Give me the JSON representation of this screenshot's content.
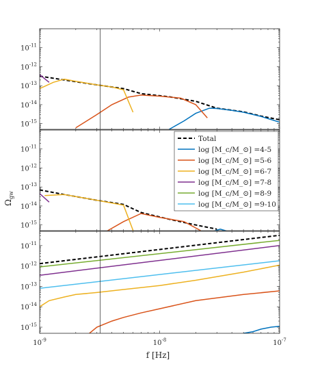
{
  "figure": {
    "ylabel": "Ω",
    "ylabel_sub": "gw",
    "xlabel": "f [Hz]",
    "x_ticks": [
      {
        "value": 1e-09,
        "base": "10",
        "exp": "-9"
      },
      {
        "value": 1e-08,
        "base": "10",
        "exp": "-8"
      },
      {
        "value": 1e-07,
        "base": "10",
        "exp": "-7"
      }
    ],
    "marker_line_f": 3.2e-09,
    "colors": {
      "4-5": "#0072BD",
      "5-6": "#D95319",
      "6-7": "#EDB120",
      "7-8": "#7E2F8E",
      "8-9": "#77AC30",
      "9-10": "#4DBEEE",
      "total": "#000000"
    }
  },
  "legend": {
    "placement": "top-right of middle panel",
    "entries": [
      {
        "key": "total",
        "label": "Total",
        "style": "dashed"
      },
      {
        "key": "4-5",
        "label": "log [M_c/M_⊙] =4-5"
      },
      {
        "key": "5-6",
        "label": "log [M_c/M_⊙] =5-6"
      },
      {
        "key": "6-7",
        "label": "log [M_c/M_⊙] =6-7"
      },
      {
        "key": "7-8",
        "label": "log [M_c/M_⊙] =7-8"
      },
      {
        "key": "8-9",
        "label": "log [M_c/M_⊙] =8-9"
      },
      {
        "key": "9-10",
        "label": "log [M_c/M_⊙] =9-10"
      }
    ]
  },
  "chart_data": [
    {
      "type": "line",
      "xscale": "log",
      "yscale": "log",
      "xlim": [
        1e-09,
        1e-07
      ],
      "ylim": [
        5e-16,
        1e-10
      ],
      "y_ticks": [
        {
          "value": 1e-15,
          "exp": "-15"
        },
        {
          "value": 1e-14,
          "exp": "-14"
        },
        {
          "value": 1e-13,
          "exp": "-13"
        },
        {
          "value": 1e-12,
          "exp": "-12"
        },
        {
          "value": 1e-11,
          "exp": "-11"
        }
      ],
      "series": [
        {
          "key": "total",
          "dashed": true,
          "x": [
            1e-09,
            1.6e-09,
            3e-09,
            5e-09,
            7e-09,
            1.2e-08,
            2e-08,
            3e-08,
            5e-08,
            7e-08,
            1e-07
          ],
          "y": [
            3.2e-13,
            2e-13,
            1.1e-13,
            7e-14,
            3.8e-14,
            2.6e-14,
            1.5e-14,
            6.5e-15,
            4.2e-15,
            2.5e-15,
            1.6e-15
          ]
        },
        {
          "key": "4-5",
          "x": [
            1.2e-08,
            1.6e-08,
            2e-08,
            2.6e-08,
            3e-08,
            4e-08,
            5e-08,
            7e-08,
            1e-07
          ],
          "y": [
            5e-16,
            1.4e-15,
            3.5e-15,
            6.5e-15,
            6.3e-15,
            5e-15,
            4e-15,
            2.4e-15,
            1.2e-15
          ]
        },
        {
          "key": "5-6",
          "x": [
            2e-09,
            3e-09,
            4e-09,
            5.5e-09,
            7e-09,
            1e-08,
            1.5e-08,
            2e-08,
            2.5e-08
          ],
          "y": [
            6e-16,
            3e-15,
            1e-14,
            2.5e-14,
            3.2e-14,
            2.8e-14,
            2.2e-14,
            1e-14,
            2e-15
          ]
        },
        {
          "key": "6-7",
          "x": [
            1e-09,
            1.3e-09,
            1.6e-09,
            2e-09,
            3e-09,
            4e-09,
            5e-09,
            6e-09
          ],
          "y": [
            7e-14,
            1.5e-13,
            2.2e-13,
            1.7e-13,
            1.1e-13,
            8.5e-14,
            6e-14,
            4e-15
          ]
        },
        {
          "key": "7-8",
          "x": [
            1e-09,
            1.2e-09
          ],
          "y": [
            3.8e-13,
            1.5e-13
          ]
        }
      ]
    },
    {
      "type": "line",
      "xscale": "log",
      "yscale": "log",
      "xlim": [
        1e-09,
        1e-07
      ],
      "ylim": [
        5e-16,
        1e-10
      ],
      "y_ticks": [
        {
          "value": 1e-15,
          "exp": "-15"
        },
        {
          "value": 1e-14,
          "exp": "-14"
        },
        {
          "value": 1e-13,
          "exp": "-13"
        },
        {
          "value": 1e-12,
          "exp": "-12"
        },
        {
          "value": 1e-11,
          "exp": "-11"
        }
      ],
      "series": [
        {
          "key": "total",
          "dashed": true,
          "x": [
            1e-09,
            1.6e-09,
            3e-09,
            5e-09,
            7e-09,
            1.2e-08,
            2e-08,
            3e-08
          ],
          "y": [
            7e-14,
            4e-14,
            2e-14,
            1.2e-14,
            4.5e-15,
            2e-15,
            1e-15,
            6e-16
          ]
        },
        {
          "key": "4-5",
          "x": [
            2.6e-08,
            3.2e-08,
            4e-08
          ],
          "y": [
            4e-16,
            6e-16,
            4e-16
          ]
        },
        {
          "key": "5-6",
          "x": [
            3.2e-09,
            5e-09,
            7e-09,
            1e-08,
            1.6e-08,
            2.2e-08
          ],
          "y": [
            3e-16,
            1.5e-15,
            4e-15,
            2.5e-15,
            1.5e-15,
            5e-16
          ]
        },
        {
          "key": "6-7",
          "x": [
            1.1e-09,
            1.6e-09,
            3e-09,
            5e-09,
            6.2e-09
          ],
          "y": [
            3.5e-14,
            4e-14,
            2e-14,
            1.1e-14,
            3e-16
          ]
        },
        {
          "key": "7-8",
          "x": [
            1e-09,
            1.2e-09
          ],
          "y": [
            4.5e-14,
            1.6e-14
          ]
        }
      ]
    },
    {
      "type": "line",
      "xscale": "log",
      "yscale": "log",
      "xlim": [
        1e-09,
        1e-07
      ],
      "ylim": [
        5e-16,
        5e-11
      ],
      "y_ticks": [
        {
          "value": 1e-15,
          "exp": "-15"
        },
        {
          "value": 1e-14,
          "exp": "-14"
        },
        {
          "value": 1e-13,
          "exp": "-13"
        },
        {
          "value": 1e-12,
          "exp": "-12"
        },
        {
          "value": 1e-11,
          "exp": "-11"
        }
      ],
      "series": [
        {
          "key": "total",
          "dashed": true,
          "x": [
            1e-09,
            1e-07
          ],
          "y": [
            1.3e-12,
            3.2e-11
          ]
        },
        {
          "key": "8-9",
          "x": [
            1e-09,
            1e-07
          ],
          "y": [
            9e-13,
            1.8e-11
          ]
        },
        {
          "key": "7-8",
          "x": [
            1e-09,
            1e-07
          ],
          "y": [
            3.5e-13,
            1e-11
          ]
        },
        {
          "key": "9-10",
          "x": [
            1e-09,
            1e-07
          ],
          "y": [
            8e-14,
            1.8e-12
          ]
        },
        {
          "key": "6-7",
          "x": [
            1e-09,
            1.2e-09,
            1.6e-09,
            2e-09,
            3e-09,
            5e-09,
            1e-08,
            2e-08,
            5e-08,
            1e-07
          ],
          "y": [
            1e-14,
            2e-14,
            3e-14,
            4e-14,
            5e-14,
            7e-14,
            1.1e-13,
            2e-13,
            5e-13,
            1.1e-12
          ]
        },
        {
          "key": "5-6",
          "x": [
            2.6e-09,
            3e-09,
            4e-09,
            5e-09,
            7e-09,
            1e-08,
            2e-08,
            5e-08,
            1e-07
          ],
          "y": [
            5e-16,
            1e-15,
            2e-15,
            3e-15,
            5e-15,
            8e-15,
            2e-14,
            4e-14,
            6e-14
          ]
        },
        {
          "key": "4-5",
          "x": [
            5e-08,
            6e-08,
            7e-08,
            8.5e-08,
            1e-07
          ],
          "y": [
            5e-16,
            6e-16,
            8e-16,
            1e-15,
            1.1e-15
          ]
        }
      ]
    }
  ]
}
